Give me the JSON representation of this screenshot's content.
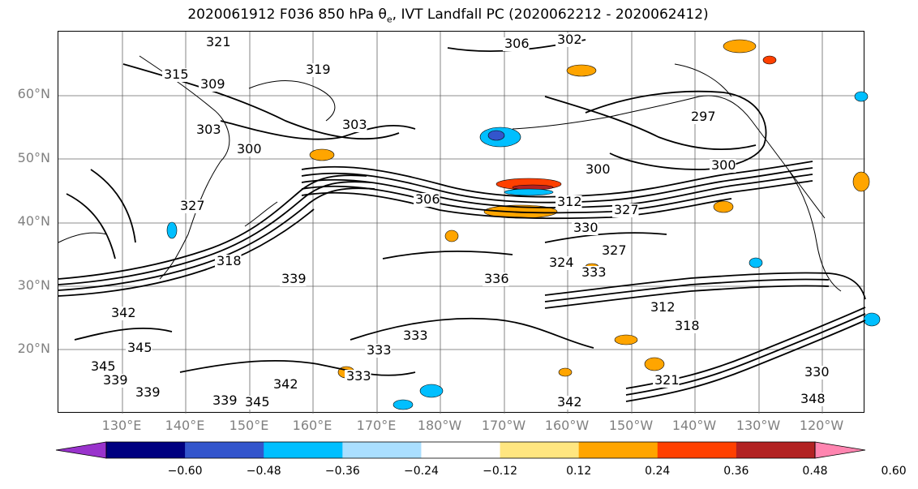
{
  "map": {
    "title_prefix": "2020061912 F036 850 hPa θ",
    "title_sub": "e",
    "title_suffix": ", IVT Landfall PC (2020062212 - 2020062412)",
    "lat_labels": [
      "60°N",
      "50°N",
      "40°N",
      "30°N",
      "20°N"
    ],
    "lon_labels": [
      "130°E",
      "140°E",
      "150°E",
      "160°E",
      "170°E",
      "180°W",
      "170°W",
      "160°W",
      "150°W",
      "140°W",
      "130°W",
      "120°W"
    ],
    "contour_labels": [
      "321",
      "315",
      "309",
      "319",
      "303",
      "303",
      "300",
      "306",
      "302",
      "297",
      "300",
      "300",
      "306",
      "312",
      "327",
      "330",
      "327",
      "324",
      "318",
      "339",
      "336",
      "333",
      "312",
      "318",
      "333",
      "342",
      "345",
      "345",
      "339",
      "342",
      "339",
      "345",
      "333",
      "321",
      "339",
      "330",
      "348",
      "327",
      "342",
      "333"
    ],
    "colors": {
      "coast": "#000000",
      "grid": "#666666",
      "contour": "#000000"
    }
  },
  "colorbar": {
    "colors": [
      "#9933cc",
      "#000080",
      "#3355cc",
      "#00bfff",
      "#aadfff",
      "#ffffff",
      "#ffe680",
      "#ffa500",
      "#ff4000",
      "#b22222",
      "#ff85b0"
    ],
    "ticks": [
      "−0.60",
      "−0.48",
      "−0.36",
      "−0.24",
      "−0.12",
      "0.12",
      "0.24",
      "0.36",
      "0.48",
      "0.60"
    ]
  }
}
